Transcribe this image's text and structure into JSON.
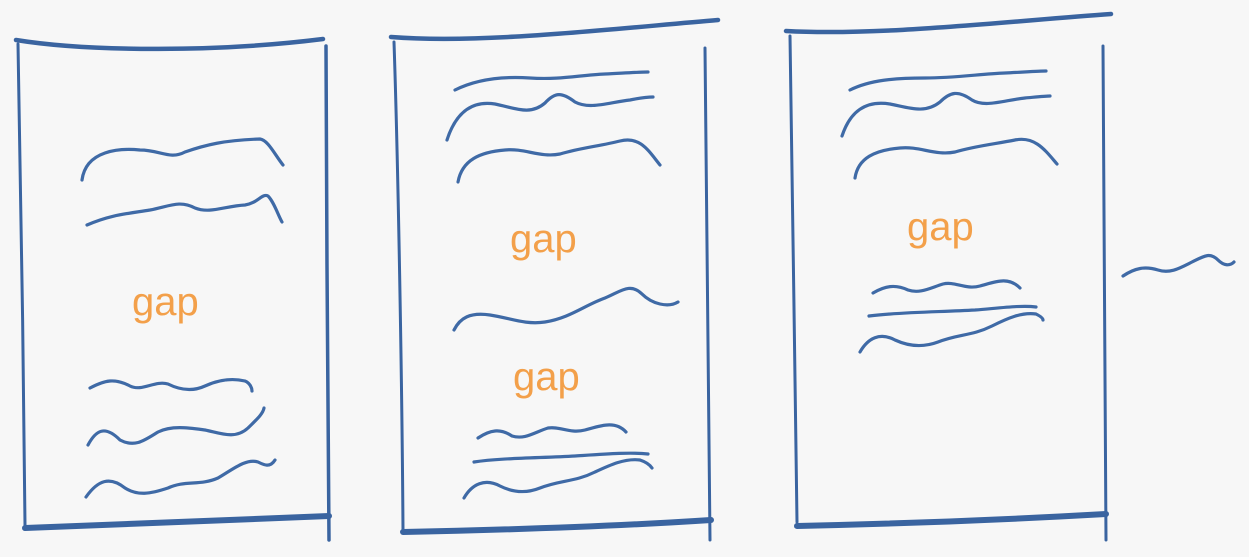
{
  "diagram": {
    "stroke_color": "#3a64a0",
    "label_color": "#f3a04a",
    "background": "#f7f7f7",
    "pages": [
      {
        "gap_labels": [
          "gap"
        ]
      },
      {
        "gap_labels": [
          "gap",
          "gap"
        ]
      },
      {
        "gap_labels": [
          "gap"
        ]
      }
    ]
  }
}
